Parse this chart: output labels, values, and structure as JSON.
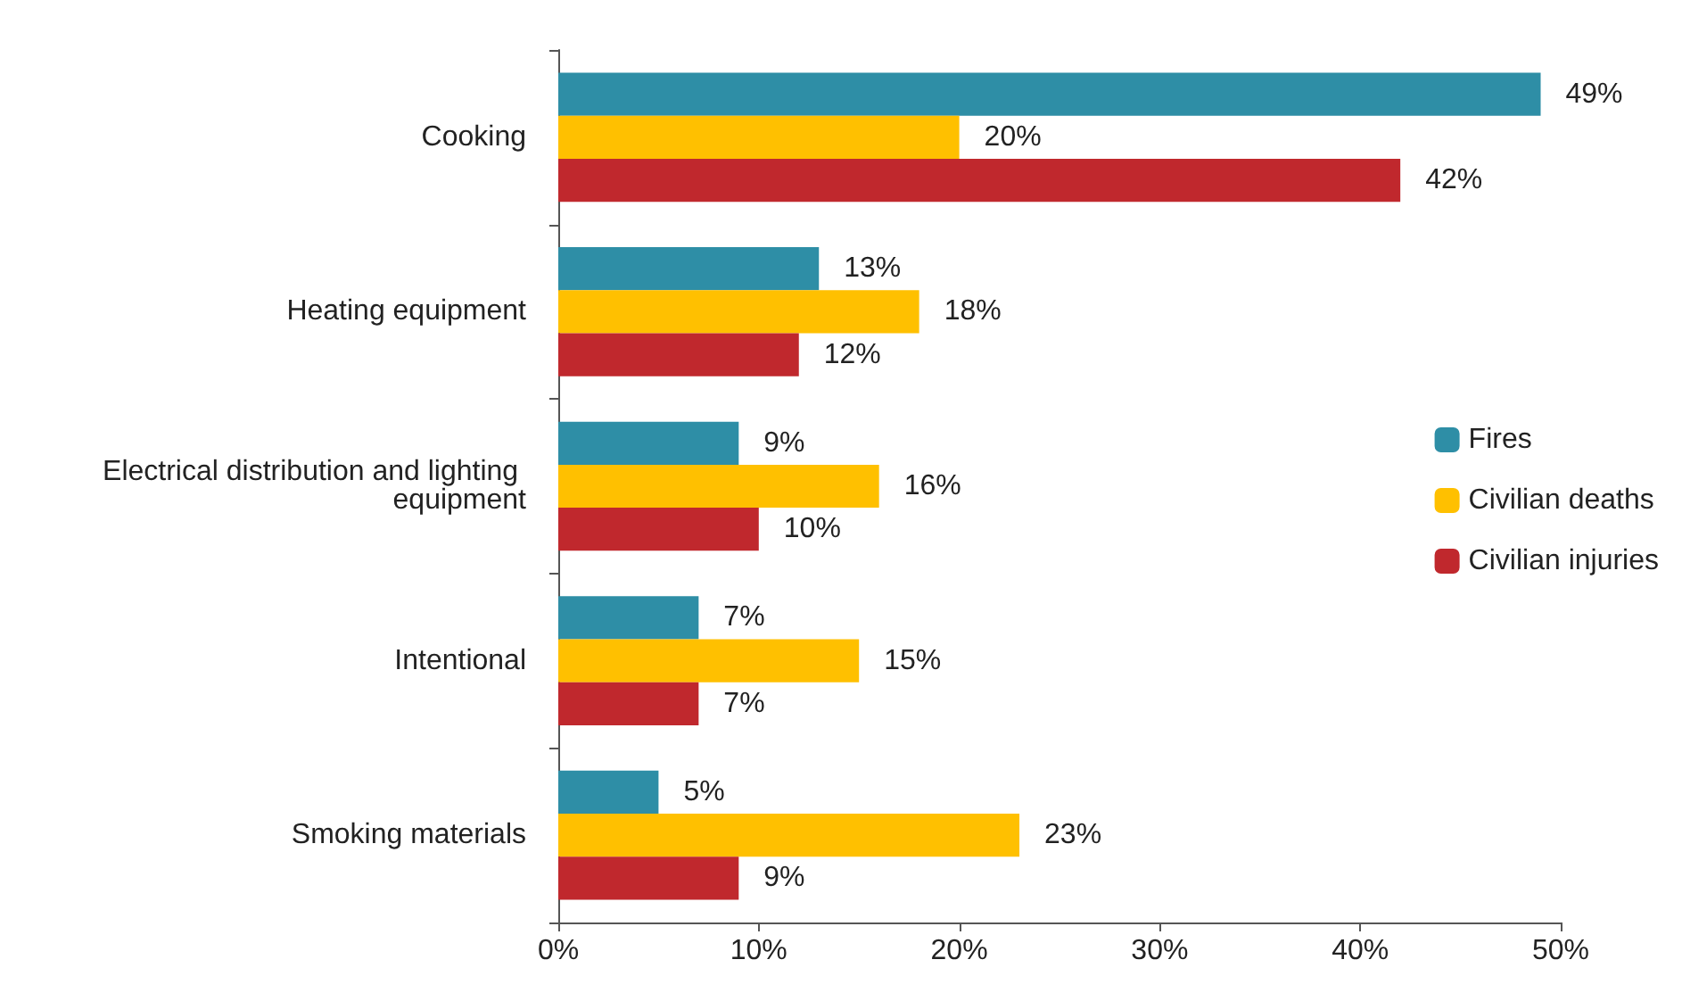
{
  "chart_data": {
    "type": "bar",
    "orientation": "horizontal",
    "categories": [
      "Cooking",
      "Heating equipment",
      "Electrical distribution and lighting equipment",
      "Intentional",
      "Smoking materials"
    ],
    "series": [
      {
        "name": "Fires",
        "color": "#2e8ea6",
        "values": [
          49,
          13,
          9,
          7,
          5
        ],
        "value_labels": [
          "49%",
          "13%",
          "9%",
          "7%",
          "5%"
        ]
      },
      {
        "name": "Civilian deaths",
        "color": "#ffc000",
        "values": [
          20,
          18,
          16,
          15,
          23
        ],
        "value_labels": [
          "20%",
          "18%",
          "16%",
          "15%",
          "23%"
        ]
      },
      {
        "name": "Civilian injuries",
        "color": "#c0282d",
        "values": [
          42,
          12,
          10,
          7,
          9
        ],
        "value_labels": [
          "42%",
          "12%",
          "10%",
          "7%",
          "9%"
        ]
      }
    ],
    "xlim": [
      0,
      50
    ],
    "xticks": [
      {
        "value": 0,
        "label": "0%"
      },
      {
        "value": 10,
        "label": "10%"
      },
      {
        "value": 20,
        "label": "20%"
      },
      {
        "value": 30,
        "label": "30%"
      },
      {
        "value": 40,
        "label": "40%"
      },
      {
        "value": 50,
        "label": "50%"
      }
    ],
    "grid": false,
    "legend": "right"
  }
}
